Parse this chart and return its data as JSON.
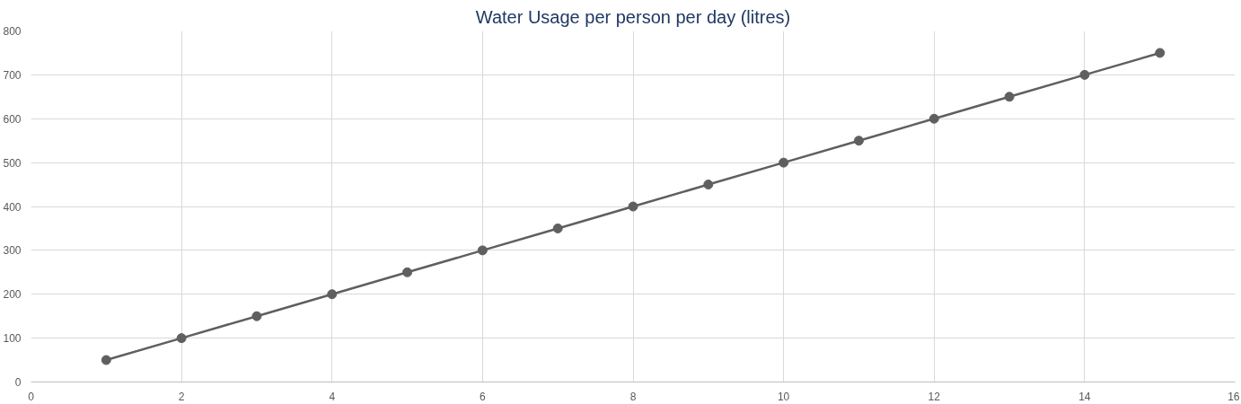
{
  "chart_data": {
    "type": "line",
    "title": "Water Usage per person per day (litres)",
    "x": [
      1,
      2,
      3,
      4,
      5,
      6,
      7,
      8,
      9,
      10,
      11,
      12,
      13,
      14,
      15
    ],
    "series": [
      {
        "color": "#5f5f5f",
        "values": [
          50,
          100,
          150,
          200,
          250,
          300,
          350,
          400,
          450,
          500,
          550,
          600,
          650,
          700,
          750
        ]
      }
    ],
    "xlim": [
      0,
      16
    ],
    "xticks": [
      0,
      2,
      4,
      6,
      8,
      10,
      12,
      14,
      16
    ],
    "ylim": [
      0,
      800
    ],
    "yticks": [
      0,
      100,
      200,
      300,
      400,
      500,
      600,
      700,
      800
    ],
    "grid": true,
    "marker": "circle",
    "line_style": "solid"
  }
}
